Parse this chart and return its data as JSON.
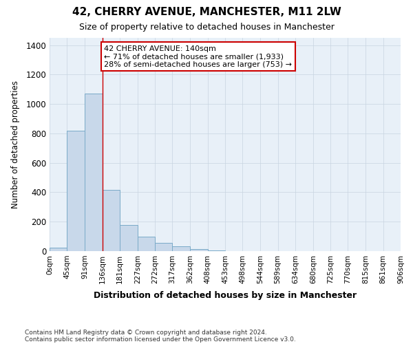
{
  "title": "42, CHERRY AVENUE, MANCHESTER, M11 2LW",
  "subtitle": "Size of property relative to detached houses in Manchester",
  "xlabel": "Distribution of detached houses by size in Manchester",
  "ylabel": "Number of detached properties",
  "bar_values": [
    25,
    820,
    1070,
    415,
    180,
    100,
    55,
    35,
    15,
    5,
    0,
    0,
    0,
    0,
    0,
    0,
    0,
    0,
    0,
    0
  ],
  "bar_edges": [
    0,
    45,
    91,
    136,
    181,
    227,
    272,
    317,
    362,
    408,
    453,
    498,
    544,
    589,
    634,
    680,
    725,
    770,
    815,
    861,
    906
  ],
  "tick_labels": [
    "0sqm",
    "45sqm",
    "91sqm",
    "136sqm",
    "181sqm",
    "227sqm",
    "272sqm",
    "317sqm",
    "362sqm",
    "408sqm",
    "453sqm",
    "498sqm",
    "544sqm",
    "589sqm",
    "634sqm",
    "680sqm",
    "725sqm",
    "770sqm",
    "815sqm",
    "861sqm",
    "906sqm"
  ],
  "bar_color": "#c8d8ea",
  "bar_edge_color": "#7aaac8",
  "property_line_x": 136,
  "property_line_color": "#cc0000",
  "annotation_line1": "42 CHERRY AVENUE: 140sqm",
  "annotation_line2": "← 71% of detached houses are smaller (1,933)",
  "annotation_line3": "28% of semi-detached houses are larger (753) →",
  "annotation_box_color": "#ffffff",
  "annotation_box_edge": "#cc0000",
  "ylim": [
    0,
    1450
  ],
  "yticks": [
    0,
    200,
    400,
    600,
    800,
    1000,
    1200,
    1400
  ],
  "grid_color": "#c8d4e0",
  "bg_color": "#ffffff",
  "plot_bg_color": "#e8f0f8",
  "footer_line1": "Contains HM Land Registry data © Crown copyright and database right 2024.",
  "footer_line2": "Contains public sector information licensed under the Open Government Licence v3.0."
}
